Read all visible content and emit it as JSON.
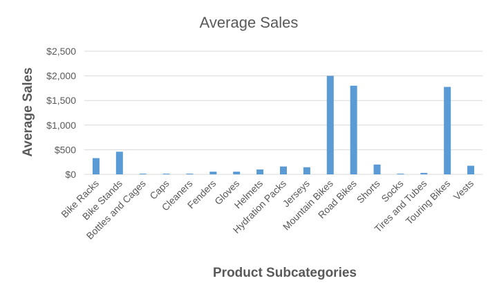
{
  "chart_data": {
    "type": "bar",
    "title": "Average Sales",
    "xlabel": "Product Subcategories",
    "ylabel": "Average Sales",
    "categories": [
      "Bike Racks",
      "Bike Stands",
      "Bottles and Cages",
      "Caps",
      "Cleaners",
      "Fenders",
      "Gloves",
      "Helmets",
      "Hydration Packs",
      "Jerseys",
      "Mountain Bikes",
      "Road Bikes",
      "Shorts",
      "Socks",
      "Tires and Tubes",
      "Touring Bikes",
      "Vests"
    ],
    "series": [
      {
        "values": [
          330,
          460,
          15,
          15,
          15,
          55,
          55,
          100,
          160,
          145,
          2000,
          1800,
          200,
          15,
          30,
          1775,
          175
        ],
        "color": "#5b9bd5"
      }
    ],
    "ylim": [
      0,
      2500
    ],
    "yticks": [
      0,
      500,
      1000,
      1500,
      2000,
      2500
    ],
    "ytick_labels": [
      "$0",
      "$500",
      "$1,000",
      "$1,500",
      "$2,000",
      "$2,500"
    ],
    "grid": true,
    "legend": "none"
  }
}
